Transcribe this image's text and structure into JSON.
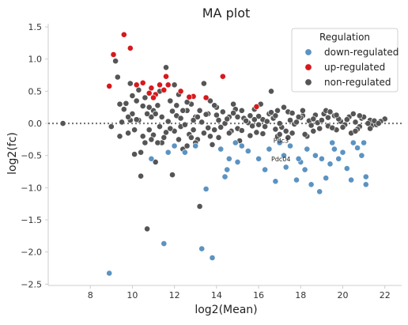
{
  "chart_data": {
    "type": "scatter",
    "title": "MA plot",
    "xlabel": "log2(Mean)",
    "ylabel": "log2(fc)",
    "xlim": [
      6.0,
      22.8
    ],
    "ylim": [
      -2.52,
      1.55
    ],
    "xticks": [
      8,
      10,
      12,
      14,
      16,
      18,
      20,
      22
    ],
    "yticks": [
      -2.5,
      -2.0,
      -1.5,
      -1.0,
      -0.5,
      0.0,
      0.5,
      1.0,
      1.5
    ],
    "xtick_labels": [
      "8",
      "10",
      "12",
      "14",
      "16",
      "18",
      "20",
      "22"
    ],
    "ytick_labels": [
      "−2.5",
      "−2.0",
      "−1.5",
      "−1.0",
      "−0.5",
      "0.0",
      "0.5",
      "1.0",
      "1.5"
    ],
    "hline": 0,
    "grid": false,
    "legend": {
      "title": "Regulation",
      "placement": "top-right",
      "entries": [
        {
          "label": "down-regulated",
          "series": "down"
        },
        {
          "label": "up-regulated",
          "series": "up"
        },
        {
          "label": "non-regulated",
          "series": "non"
        }
      ]
    },
    "colors": {
      "down": "#5b93c2",
      "up": "#d7191c",
      "non": "#555555",
      "hline": "#777777"
    },
    "annotations": [
      {
        "text": "Pdc3",
        "x": 16.7,
        "y": -0.3
      },
      {
        "text": "Pdc04",
        "x": 16.6,
        "y": -0.59
      }
    ],
    "series": [
      {
        "key": "up",
        "points": [
          [
            8.9,
            0.58
          ],
          [
            9.1,
            1.07
          ],
          [
            9.6,
            1.38
          ],
          [
            9.9,
            1.17
          ],
          [
            10.2,
            0.6
          ],
          [
            10.5,
            0.63
          ],
          [
            10.8,
            0.47
          ],
          [
            10.9,
            0.55
          ],
          [
            11.1,
            0.45
          ],
          [
            11.3,
            0.6
          ],
          [
            11.6,
            0.73
          ],
          [
            11.5,
            0.52
          ],
          [
            11.7,
            0.6
          ],
          [
            12.3,
            0.5
          ],
          [
            12.9,
            0.42
          ],
          [
            13.5,
            0.4
          ],
          [
            14.3,
            0.73
          ],
          [
            15.9,
            0.26
          ],
          [
            11.0,
            0.4
          ],
          [
            12.7,
            0.41
          ]
        ]
      },
      {
        "key": "down",
        "points": [
          [
            8.9,
            -2.33
          ],
          [
            10.9,
            -0.55
          ],
          [
            11.5,
            -1.87
          ],
          [
            11.7,
            -0.45
          ],
          [
            12.0,
            -0.35
          ],
          [
            12.5,
            -0.45
          ],
          [
            13.0,
            -0.35
          ],
          [
            13.3,
            -1.95
          ],
          [
            13.5,
            -1.02
          ],
          [
            13.8,
            -2.09
          ],
          [
            14.2,
            -0.4
          ],
          [
            14.4,
            -0.83
          ],
          [
            14.5,
            -0.72
          ],
          [
            14.6,
            -0.55
          ],
          [
            14.9,
            -0.3
          ],
          [
            15.0,
            -0.6
          ],
          [
            15.5,
            -0.43
          ],
          [
            16.0,
            -0.55
          ],
          [
            16.3,
            -0.72
          ],
          [
            16.5,
            -0.4
          ],
          [
            16.8,
            -0.9
          ],
          [
            17.0,
            -0.3
          ],
          [
            17.2,
            -0.5
          ],
          [
            17.5,
            -0.35
          ],
          [
            17.8,
            -0.88
          ],
          [
            18.0,
            -0.6
          ],
          [
            18.2,
            -0.72
          ],
          [
            18.3,
            -0.4
          ],
          [
            18.5,
            -0.95
          ],
          [
            18.7,
            -0.5
          ],
          [
            18.9,
            -1.06
          ],
          [
            19.0,
            -0.55
          ],
          [
            19.2,
            -0.85
          ],
          [
            19.4,
            -0.63
          ],
          [
            19.5,
            -0.3
          ],
          [
            19.8,
            -0.55
          ],
          [
            20.0,
            -0.45
          ],
          [
            20.2,
            -0.7
          ],
          [
            20.4,
            -0.88
          ],
          [
            20.5,
            -0.3
          ],
          [
            20.7,
            -0.38
          ],
          [
            20.9,
            -0.5
          ],
          [
            21.1,
            -0.83
          ],
          [
            21.1,
            -0.95
          ],
          [
            21.0,
            -0.3
          ],
          [
            17.3,
            -0.68
          ],
          [
            19.6,
            -0.4
          ],
          [
            15.2,
            -0.35
          ],
          [
            17.9,
            -0.55
          ]
        ]
      },
      {
        "key": "non",
        "points": [
          [
            6.7,
            0.0
          ],
          [
            9.0,
            -0.05
          ],
          [
            9.2,
            0.97
          ],
          [
            9.3,
            0.72
          ],
          [
            9.4,
            -0.2
          ],
          [
            9.5,
            0.02
          ],
          [
            9.7,
            0.31
          ],
          [
            9.9,
            0.62
          ],
          [
            10.0,
            0.15
          ],
          [
            10.1,
            -0.48
          ],
          [
            10.2,
            0.35
          ],
          [
            10.3,
            0.05
          ],
          [
            10.4,
            -0.82
          ],
          [
            10.5,
            0.27
          ],
          [
            10.7,
            -1.64
          ],
          [
            10.8,
            -0.1
          ],
          [
            11.0,
            0.2
          ],
          [
            11.2,
            0.28
          ],
          [
            11.4,
            -0.3
          ],
          [
            11.6,
            0.87
          ],
          [
            11.8,
            0.35
          ],
          [
            11.9,
            -0.8
          ],
          [
            12.0,
            0.6
          ],
          [
            12.1,
            0.12
          ],
          [
            12.3,
            -0.05
          ],
          [
            12.6,
            0.2
          ],
          [
            12.8,
            0.3
          ],
          [
            13.0,
            0.1
          ],
          [
            13.1,
            -0.25
          ],
          [
            13.2,
            -1.29
          ],
          [
            13.4,
            0.62
          ],
          [
            13.6,
            0.15
          ],
          [
            14.0,
            0.25
          ],
          [
            14.6,
            0.1
          ],
          [
            15.2,
            0.2
          ],
          [
            15.6,
            0.12
          ],
          [
            16.6,
            0.5
          ],
          [
            9.8,
            -0.15
          ],
          [
            10.6,
            -0.3
          ],
          [
            12.2,
            0.45
          ],
          [
            13.9,
            -0.1
          ],
          [
            14.8,
            0.3
          ],
          [
            15.8,
            0.22
          ],
          [
            16.9,
            0.2
          ],
          [
            17.4,
            0.18
          ],
          [
            18.1,
            0.12
          ],
          [
            19.1,
            0.15
          ],
          [
            20.3,
            0.1
          ],
          [
            21.3,
            0.05
          ],
          [
            22.0,
            0.07
          ],
          [
            11.1,
            -0.6
          ],
          [
            12.4,
            -0.4
          ],
          [
            13.7,
            -0.2
          ],
          [
            17.6,
            -0.15
          ],
          [
            18.6,
            -0.12
          ],
          [
            19.7,
            -0.1
          ],
          [
            20.8,
            -0.05
          ],
          [
            10.9,
            0.1
          ],
          [
            11.3,
            -0.05
          ],
          [
            12.9,
            -0.1
          ],
          [
            14.1,
            0.05
          ],
          [
            15.0,
            -0.08
          ],
          [
            16.2,
            0.06
          ],
          [
            17.1,
            -0.06
          ],
          [
            18.4,
            0.04
          ],
          [
            19.3,
            -0.04
          ],
          [
            20.6,
            0.02
          ],
          [
            21.4,
            -0.03
          ],
          [
            15.5,
            0.01
          ],
          [
            16.0,
            -0.02
          ],
          [
            16.4,
            0.03
          ],
          [
            17.0,
            0.0
          ],
          [
            17.7,
            -0.01
          ],
          [
            18.8,
            0.01
          ],
          [
            14.4,
            0.0
          ],
          [
            13.3,
            0.02
          ],
          [
            12.5,
            -0.02
          ],
          [
            11.7,
            0.03
          ],
          [
            10.2,
            0.06
          ],
          [
            19.9,
            0.03
          ],
          [
            20.1,
            -0.02
          ],
          [
            21.2,
            0.0
          ],
          [
            15.3,
            0.08
          ],
          [
            16.8,
            -0.09
          ],
          [
            18.0,
            0.09
          ],
          [
            19.5,
            -0.07
          ],
          [
            14.7,
            -0.12
          ],
          [
            13.5,
            0.14
          ],
          [
            12.7,
            -0.17
          ],
          [
            11.9,
            0.19
          ],
          [
            20.9,
            0.08
          ],
          [
            17.9,
            0.1
          ],
          [
            16.5,
            0.15
          ],
          [
            15.9,
            -0.14
          ],
          [
            14.3,
            0.18
          ],
          [
            13.0,
            -0.3
          ],
          [
            12.1,
            0.28
          ],
          [
            11.5,
            -0.22
          ],
          [
            10.6,
            0.4
          ],
          [
            9.6,
            0.22
          ],
          [
            21.6,
            -0.02
          ],
          [
            21.8,
            0.03
          ],
          [
            17.2,
            0.25
          ],
          [
            18.3,
            -0.2
          ],
          [
            19.2,
            0.2
          ],
          [
            20.4,
            -0.15
          ],
          [
            16.1,
            0.3
          ],
          [
            15.1,
            -0.27
          ],
          [
            14.9,
            0.22
          ],
          [
            13.8,
            -0.33
          ],
          [
            12.6,
            0.33
          ],
          [
            11.3,
            0.5
          ],
          [
            10.4,
            -0.45
          ],
          [
            12.9,
            0.05
          ],
          [
            16.3,
            -0.05
          ],
          [
            17.5,
            0.05
          ],
          [
            18.5,
            -0.03
          ],
          [
            19.0,
            0.05
          ],
          [
            20.0,
            -0.06
          ],
          [
            14.5,
            0.07
          ],
          [
            15.7,
            -0.04
          ],
          [
            16.7,
            0.08
          ],
          [
            18.9,
            -0.08
          ],
          [
            19.8,
            0.07
          ],
          [
            20.7,
            -0.09
          ],
          [
            21.0,
            0.1
          ],
          [
            13.1,
            0.1
          ],
          [
            12.3,
            0.08
          ],
          [
            11.1,
            0.15
          ],
          [
            10.1,
            -0.1
          ],
          [
            9.9,
            0.05
          ],
          [
            14.2,
            -0.06
          ],
          [
            15.4,
            0.04
          ],
          [
            17.8,
            0.02
          ],
          [
            18.7,
            0.13
          ],
          [
            16.0,
            0.11
          ],
          [
            15.2,
            -0.11
          ],
          [
            17.3,
            -0.12
          ],
          [
            19.6,
            0.12
          ],
          [
            12.0,
            -0.12
          ],
          [
            13.6,
            -0.07
          ],
          [
            14.0,
            0.13
          ],
          [
            11.8,
            -0.08
          ],
          [
            10.8,
            0.25
          ],
          [
            20.2,
            0.06
          ],
          [
            20.5,
            0.15
          ],
          [
            21.5,
            0.04
          ],
          [
            9.4,
            0.3
          ],
          [
            10.0,
            0.43
          ],
          [
            10.3,
            0.52
          ],
          [
            12.4,
            0.2
          ],
          [
            13.9,
            0.28
          ],
          [
            16.9,
            -0.2
          ],
          [
            17.6,
            0.16
          ],
          [
            18.2,
            -0.17
          ],
          [
            19.4,
            0.18
          ],
          [
            15.6,
            -0.19
          ],
          [
            14.8,
            0.16
          ],
          [
            11.4,
            0.1
          ],
          [
            11.6,
            -0.14
          ],
          [
            10.5,
            -0.2
          ],
          [
            12.8,
            -0.22
          ],
          [
            13.4,
            -0.15
          ],
          [
            16.6,
            0.17
          ],
          [
            17.0,
            -0.17
          ],
          [
            18.6,
            0.07
          ],
          [
            19.3,
            0.09
          ],
          [
            20.8,
            0.12
          ],
          [
            21.3,
            -0.08
          ],
          [
            15.0,
            0.1
          ],
          [
            14.6,
            -0.15
          ],
          [
            13.2,
            0.2
          ],
          [
            12.2,
            -0.25
          ],
          [
            11.0,
            -0.18
          ],
          [
            10.7,
            0.15
          ],
          [
            9.8,
            0.1
          ],
          [
            17.4,
            -0.22
          ],
          [
            16.2,
            -0.16
          ],
          [
            18.1,
            0.2
          ],
          [
            19.7,
            0.13
          ],
          [
            20.6,
            -0.12
          ],
          [
            21.7,
            0.0
          ],
          [
            16.8,
            0.12
          ],
          [
            15.8,
            0.06
          ],
          [
            14.1,
            -0.22
          ],
          [
            13.7,
            0.35
          ],
          [
            12.6,
            -0.35
          ],
          [
            11.2,
            -0.3
          ],
          [
            10.9,
            -0.25
          ]
        ]
      }
    ]
  }
}
